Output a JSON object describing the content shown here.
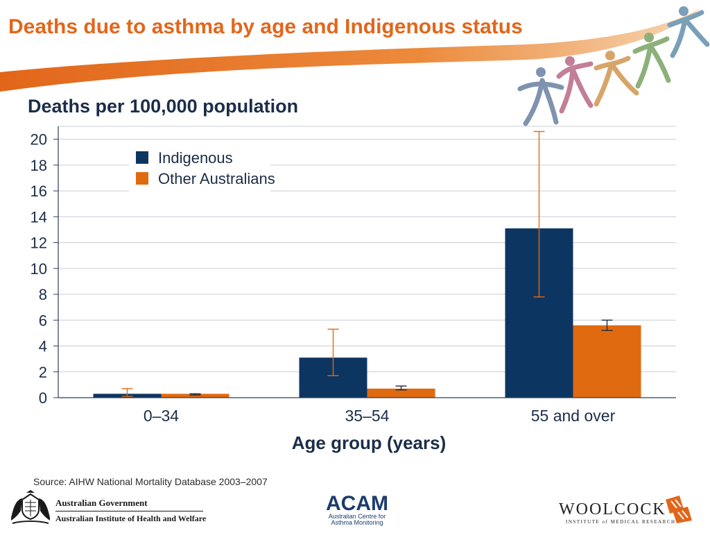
{
  "slide": {
    "title": "Deaths due to asthma by age and Indigenous status",
    "source": "Source: AIHW National Mortality Database 2003–2007"
  },
  "colors": {
    "title_orange": "#e2661a",
    "indigenous": "#0d3561",
    "other_australians": "#e06a10",
    "gridline": "#c9cdd6"
  },
  "chart_data": {
    "type": "bar",
    "title": "Deaths per 100,000 population",
    "xlabel": "Age group (years)",
    "ylabel": "",
    "ylim": [
      0,
      21
    ],
    "yticks": [
      0,
      2,
      4,
      6,
      8,
      10,
      12,
      14,
      16,
      18,
      20
    ],
    "grid": true,
    "legend_position": "top-left",
    "categories": [
      "0–34",
      "35–54",
      "55 and over"
    ],
    "series": [
      {
        "name": "Indigenous",
        "values": [
          0.3,
          3.1,
          13.1
        ],
        "error_low": [
          0.1,
          1.7,
          7.8
        ],
        "error_high": [
          0.7,
          5.3,
          20.6
        ]
      },
      {
        "name": "Other Australians",
        "values": [
          0.3,
          0.7,
          5.6
        ],
        "error_low": [
          0.2,
          0.6,
          5.2
        ],
        "error_high": [
          0.3,
          0.9,
          6.0
        ]
      }
    ]
  },
  "logos": {
    "gov_line1": "Australian Government",
    "gov_line2": "Australian Institute of Health and Welfare",
    "acam_word": "ACAM",
    "acam_sub1": "Australian Centre for",
    "acam_sub2": "Asthma Monitoring",
    "woolcock_word": "WOOLCOCK",
    "woolcock_sub": "INSTITUTE of MEDICAL RESEARCH"
  }
}
